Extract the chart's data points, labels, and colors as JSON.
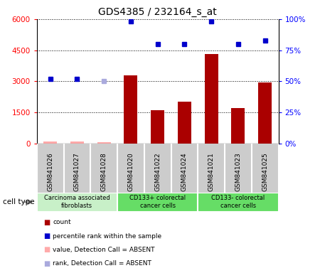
{
  "title": "GDS4385 / 232164_s_at",
  "samples": [
    "GSM841026",
    "GSM841027",
    "GSM841028",
    "GSM841020",
    "GSM841022",
    "GSM841024",
    "GSM841021",
    "GSM841023",
    "GSM841025"
  ],
  "count_values": [
    75,
    100,
    50,
    3300,
    1600,
    2000,
    4300,
    1700,
    2950
  ],
  "count_absent": [
    true,
    true,
    true,
    false,
    false,
    false,
    false,
    false,
    false
  ],
  "percentile_values": [
    52,
    52,
    50,
    98,
    80,
    80,
    98,
    80,
    83
  ],
  "percentile_absent": [
    false,
    false,
    true,
    false,
    false,
    false,
    false,
    false,
    false
  ],
  "ylim_left": [
    0,
    6000
  ],
  "ylim_right": [
    0,
    100
  ],
  "yticks_left": [
    0,
    1500,
    3000,
    4500,
    6000
  ],
  "yticks_right": [
    0,
    25,
    50,
    75,
    100
  ],
  "cell_groups": [
    {
      "label": "Carcinoma associated\nfibroblasts",
      "start": 0,
      "end": 3,
      "color": "#c8f0c8"
    },
    {
      "label": "CD133+ colorectal\ncancer cells",
      "start": 3,
      "end": 6,
      "color": "#66dd66"
    },
    {
      "label": "CD133- colorectal\ncancer cells",
      "start": 6,
      "end": 9,
      "color": "#66dd66"
    }
  ],
  "bar_color_normal": "#aa0000",
  "bar_color_absent": "#ffaaaa",
  "dot_color_normal": "#0000cc",
  "dot_color_absent": "#aaaadd",
  "bar_width": 0.5,
  "bg_color": "#cccccc",
  "plot_bg": "#ffffff",
  "cell_type_label": "cell type"
}
